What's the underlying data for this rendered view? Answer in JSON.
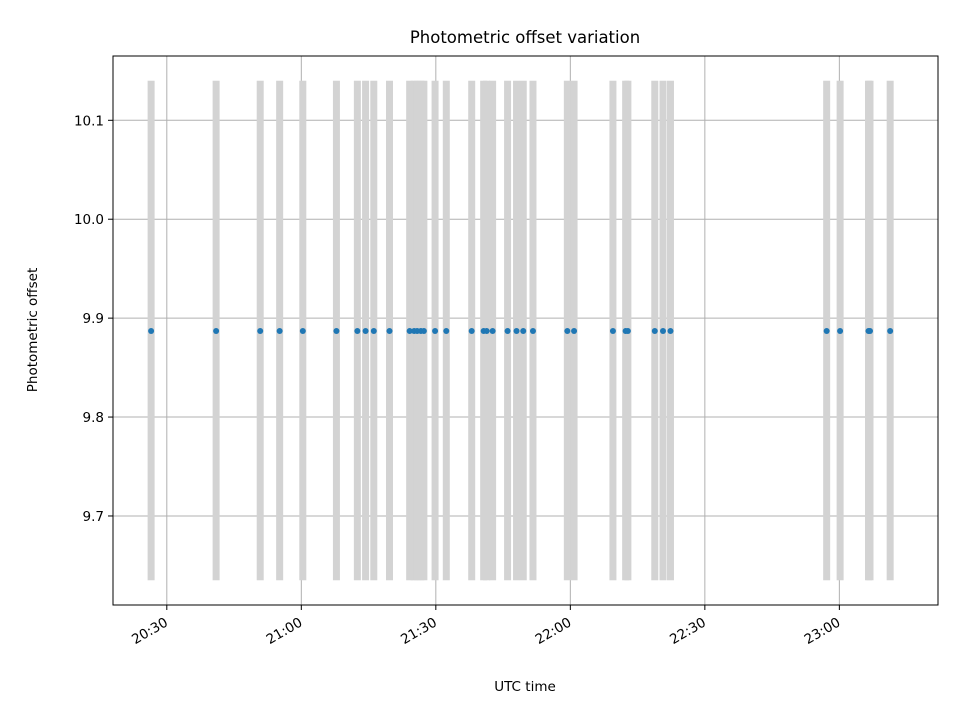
{
  "chart_data": {
    "type": "scatter",
    "title": "Photometric offset variation",
    "xlabel": "UTC time",
    "ylabel": "Photometric offset",
    "x_axis_kind": "time",
    "xlim": [
      "20:18",
      "23:22"
    ],
    "ylim": [
      9.61,
      10.165
    ],
    "grid": true,
    "legend": "none",
    "x_ticks": [
      "20:30",
      "21:00",
      "21:30",
      "22:00",
      "22:30",
      "23:00"
    ],
    "y_ticks": [
      "9.7",
      "9.8",
      "9.9",
      "10.0",
      "10.1"
    ],
    "band_range": [
      9.635,
      10.14
    ],
    "colors": {
      "points": "#1f77b4",
      "bands": "#d3d3d3",
      "grid": "#b0b0b0",
      "axes": "#000000"
    },
    "series": [
      {
        "x": [
          "20:26:30",
          "20:41:00",
          "20:50:50",
          "20:55:10",
          "21:00:20",
          "21:07:50",
          "21:12:30",
          "21:14:20",
          "21:16:10",
          "21:19:40",
          "21:24:10",
          "21:25:10",
          "21:25:50",
          "21:26:40",
          "21:27:20",
          "21:29:50",
          "21:32:20",
          "21:38:00",
          "21:40:40",
          "21:41:20",
          "21:42:40",
          "21:46:00",
          "21:48:00",
          "21:49:30",
          "21:51:40",
          "21:59:20",
          "22:00:50",
          "22:09:30",
          "22:12:20",
          "22:12:50",
          "22:18:50",
          "22:20:40",
          "22:22:20",
          "22:57:10",
          "23:00:10",
          "23:06:30",
          "23:06:50",
          "23:11:20"
        ],
        "y": [
          9.887,
          9.887,
          9.887,
          9.887,
          9.887,
          9.887,
          9.887,
          9.887,
          9.887,
          9.887,
          9.887,
          9.887,
          9.887,
          9.887,
          9.887,
          9.887,
          9.887,
          9.887,
          9.887,
          9.887,
          9.887,
          9.887,
          9.887,
          9.887,
          9.887,
          9.887,
          9.887,
          9.887,
          9.887,
          9.887,
          9.887,
          9.887,
          9.887,
          9.887,
          9.887,
          9.887,
          9.887,
          9.887
        ]
      }
    ]
  }
}
